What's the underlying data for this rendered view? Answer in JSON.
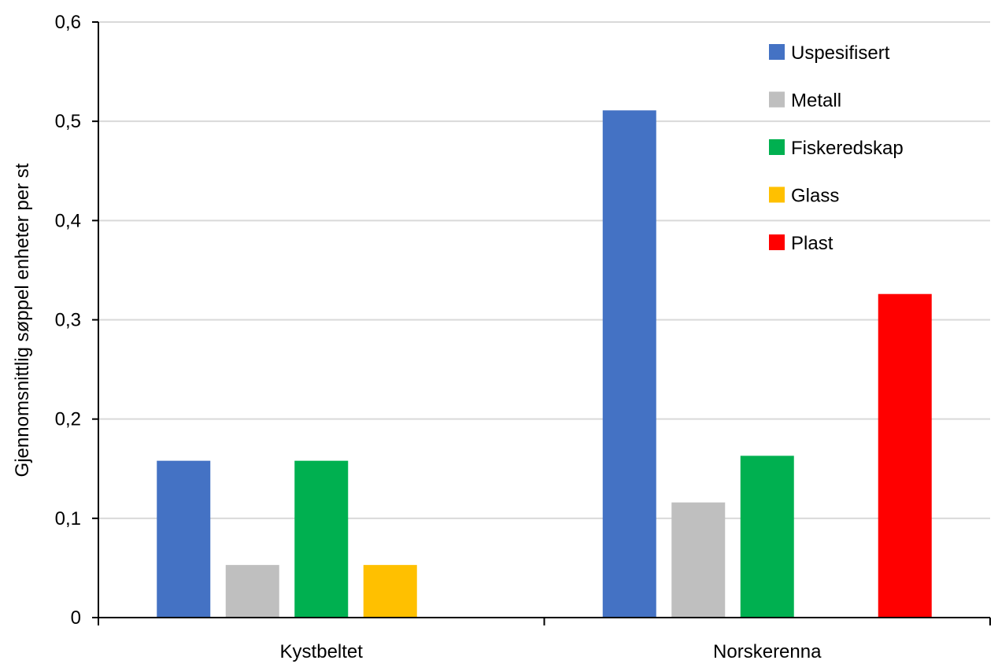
{
  "chart_data": {
    "type": "bar",
    "categories": [
      "Kystbeltet",
      "Norskerenna"
    ],
    "series": [
      {
        "name": "Uspesifisert",
        "color": "#4472C4",
        "values": [
          0.158,
          0.511
        ]
      },
      {
        "name": "Metall",
        "color": "#BFBFBF",
        "values": [
          0.053,
          0.116
        ]
      },
      {
        "name": "Fiskeredskap",
        "color": "#00B050",
        "values": [
          0.158,
          0.163
        ]
      },
      {
        "name": "Glass",
        "color": "#FFC000",
        "values": [
          0.053,
          0
        ]
      },
      {
        "name": "Plast",
        "color": "#FF0000",
        "values": [
          0,
          0.326
        ]
      }
    ],
    "ylabel": "Gjennomsnittlig søppel enheter per st",
    "ylim": [
      0,
      0.6
    ],
    "yticks": [
      0,
      0.1,
      0.2,
      0.3,
      0.4,
      0.5,
      0.6
    ],
    "ytick_labels": [
      "0",
      "0,1",
      "0,2",
      "0,3",
      "0,4",
      "0,5",
      "0,6"
    ],
    "grid": true,
    "legend_position": "top-right"
  }
}
